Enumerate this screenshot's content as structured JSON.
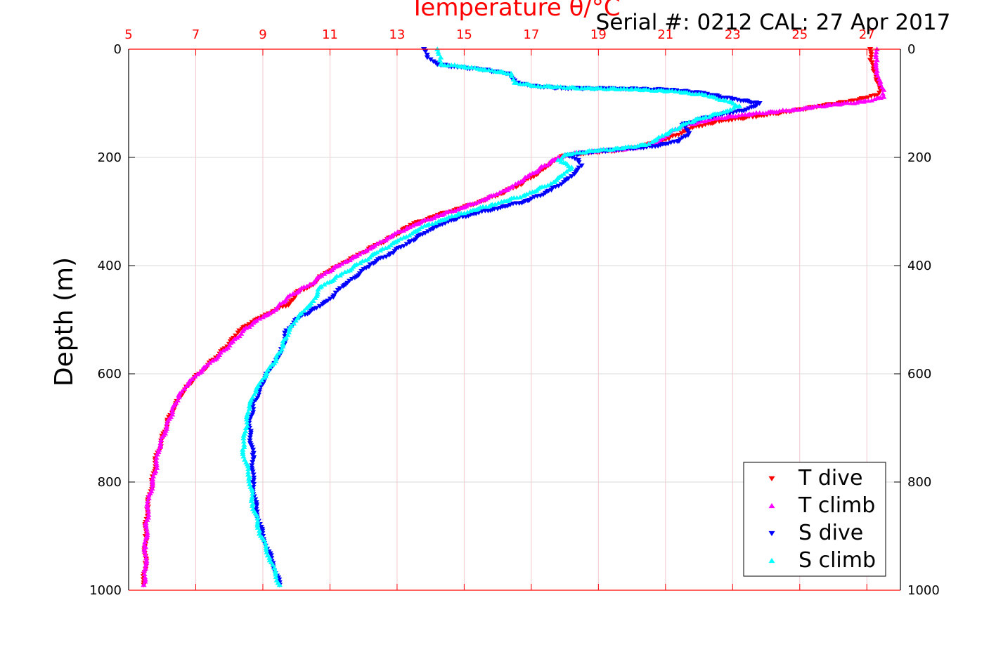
{
  "chart_data": {
    "type": "scatter",
    "title": "Temperature θ/°C",
    "subtitle": "Serial #: 0212  CAL: 27 Apr 2017",
    "xlabel": "Temperature θ/°C",
    "ylabel": "Depth (m)",
    "xlim": [
      5,
      28
    ],
    "ylim": [
      1000,
      0
    ],
    "x_ticks": [
      "5",
      "7",
      "9",
      "11",
      "13",
      "15",
      "17",
      "19",
      "21",
      "23",
      "25",
      "27"
    ],
    "y_ticks": [
      "0",
      "200",
      "400",
      "600",
      "800",
      "1000"
    ],
    "y_ticks_right": [
      "0",
      "200",
      "400",
      "600",
      "800",
      "1000"
    ],
    "grid": true,
    "legend_position": "bottom-right",
    "series": [
      {
        "name": "T dive",
        "color": "#ff0000",
        "marker": "triangle-down",
        "points": [
          [
            27.1,
            0
          ],
          [
            27.1,
            20
          ],
          [
            27.2,
            40
          ],
          [
            27.3,
            60
          ],
          [
            27.4,
            75
          ],
          [
            27.3,
            85
          ],
          [
            26.6,
            95
          ],
          [
            25.6,
            105
          ],
          [
            24.7,
            115
          ],
          [
            23.6,
            125
          ],
          [
            22.6,
            133
          ],
          [
            21.8,
            145
          ],
          [
            21.1,
            165
          ],
          [
            20.4,
            178
          ],
          [
            19.6,
            187
          ],
          [
            18.6,
            192
          ],
          [
            17.9,
            198
          ],
          [
            17.6,
            210
          ],
          [
            17.2,
            230
          ],
          [
            16.6,
            252
          ],
          [
            16.0,
            270
          ],
          [
            15.2,
            288
          ],
          [
            14.3,
            305
          ],
          [
            13.4,
            325
          ],
          [
            12.9,
            345
          ],
          [
            12.3,
            365
          ],
          [
            11.7,
            385
          ],
          [
            11.1,
            405
          ],
          [
            10.7,
            420
          ],
          [
            10.5,
            435
          ],
          [
            10.0,
            450
          ],
          [
            9.8,
            470
          ],
          [
            9.3,
            485
          ],
          [
            8.8,
            500
          ],
          [
            8.3,
            520
          ],
          [
            8.0,
            545
          ],
          [
            7.6,
            570
          ],
          [
            7.1,
            600
          ],
          [
            6.8,
            620
          ],
          [
            6.5,
            645
          ],
          [
            6.2,
            680
          ],
          [
            6.0,
            720
          ],
          [
            5.8,
            760
          ],
          [
            5.7,
            800
          ],
          [
            5.55,
            850
          ],
          [
            5.5,
            900
          ],
          [
            5.5,
            950
          ],
          [
            5.45,
            990
          ]
        ]
      },
      {
        "name": "T climb",
        "color": "#ff00ff",
        "marker": "triangle-up",
        "points": [
          [
            27.3,
            0
          ],
          [
            27.3,
            20
          ],
          [
            27.3,
            40
          ],
          [
            27.4,
            60
          ],
          [
            27.5,
            75
          ],
          [
            27.5,
            88
          ],
          [
            26.9,
            97
          ],
          [
            25.9,
            103
          ],
          [
            24.8,
            112
          ],
          [
            23.5,
            120
          ],
          [
            22.5,
            128
          ],
          [
            21.6,
            140
          ],
          [
            21.1,
            155
          ],
          [
            20.8,
            172
          ],
          [
            20.1,
            183
          ],
          [
            19.2,
            187
          ],
          [
            18.3,
            192
          ],
          [
            17.8,
            200
          ],
          [
            17.4,
            215
          ],
          [
            16.9,
            235
          ],
          [
            16.4,
            255
          ],
          [
            15.7,
            275
          ],
          [
            15.0,
            292
          ],
          [
            14.2,
            308
          ],
          [
            13.3,
            330
          ],
          [
            12.7,
            350
          ],
          [
            12.1,
            372
          ],
          [
            11.5,
            392
          ],
          [
            10.9,
            412
          ],
          [
            10.4,
            435
          ],
          [
            9.9,
            452
          ],
          [
            9.6,
            468
          ],
          [
            9.3,
            485
          ],
          [
            8.9,
            498
          ],
          [
            8.5,
            515
          ],
          [
            8.1,
            540
          ],
          [
            7.7,
            565
          ],
          [
            7.2,
            592
          ],
          [
            6.8,
            615
          ],
          [
            6.5,
            640
          ],
          [
            6.3,
            670
          ],
          [
            6.1,
            705
          ],
          [
            5.9,
            740
          ],
          [
            5.8,
            780
          ],
          [
            5.6,
            830
          ],
          [
            5.55,
            870
          ],
          [
            5.5,
            920
          ],
          [
            5.5,
            960
          ],
          [
            5.45,
            990
          ]
        ]
      },
      {
        "name": "S dive",
        "color": "#0000ff",
        "marker": "triangle-down",
        "points": [
          [
            13.8,
            0
          ],
          [
            13.9,
            15
          ],
          [
            14.2,
            28
          ],
          [
            14.8,
            33
          ],
          [
            15.6,
            38
          ],
          [
            16.3,
            45
          ],
          [
            16.6,
            62
          ],
          [
            17.0,
            68
          ],
          [
            17.9,
            72
          ],
          [
            19.7,
            73
          ],
          [
            21.0,
            75
          ],
          [
            22.0,
            80
          ],
          [
            23.0,
            92
          ],
          [
            23.8,
            100
          ],
          [
            23.4,
            112
          ],
          [
            22.7,
            120
          ],
          [
            22.0,
            130
          ],
          [
            21.5,
            140
          ],
          [
            21.7,
            155
          ],
          [
            21.4,
            170
          ],
          [
            20.6,
            180
          ],
          [
            19.7,
            185
          ],
          [
            18.8,
            190
          ],
          [
            18.1,
            196
          ],
          [
            18.4,
            205
          ],
          [
            18.5,
            215
          ],
          [
            18.2,
            235
          ],
          [
            17.6,
            260
          ],
          [
            16.9,
            280
          ],
          [
            15.9,
            295
          ],
          [
            14.8,
            312
          ],
          [
            14.1,
            330
          ],
          [
            13.4,
            355
          ],
          [
            12.8,
            378
          ],
          [
            12.2,
            398
          ],
          [
            11.8,
            420
          ],
          [
            11.3,
            442
          ],
          [
            11.1,
            458
          ],
          [
            10.7,
            475
          ],
          [
            10.1,
            495
          ],
          [
            9.7,
            520
          ],
          [
            9.6,
            550
          ],
          [
            9.4,
            575
          ],
          [
            9.1,
            600
          ],
          [
            8.9,
            630
          ],
          [
            8.7,
            660
          ],
          [
            8.6,
            700
          ],
          [
            8.7,
            750
          ],
          [
            8.7,
            800
          ],
          [
            8.8,
            850
          ],
          [
            9.0,
            900
          ],
          [
            9.3,
            950
          ],
          [
            9.5,
            990
          ]
        ]
      },
      {
        "name": "S climb",
        "color": "#00ffff",
        "marker": "triangle-up",
        "points": [
          [
            14.2,
            0
          ],
          [
            14.3,
            15
          ],
          [
            14.3,
            28
          ],
          [
            15.0,
            32
          ],
          [
            15.6,
            38
          ],
          [
            16.4,
            45
          ],
          [
            16.5,
            62
          ],
          [
            17.2,
            68
          ],
          [
            18.5,
            72
          ],
          [
            20.0,
            74
          ],
          [
            21.3,
            78
          ],
          [
            22.2,
            85
          ],
          [
            22.8,
            95
          ],
          [
            23.2,
            105
          ],
          [
            22.8,
            115
          ],
          [
            22.2,
            125
          ],
          [
            21.7,
            135
          ],
          [
            21.3,
            148
          ],
          [
            20.9,
            160
          ],
          [
            20.5,
            175
          ],
          [
            19.7,
            183
          ],
          [
            18.8,
            188
          ],
          [
            18.0,
            195
          ],
          [
            17.8,
            205
          ],
          [
            18.2,
            218
          ],
          [
            17.7,
            245
          ],
          [
            16.8,
            270
          ],
          [
            15.8,
            288
          ],
          [
            14.8,
            306
          ],
          [
            13.9,
            325
          ],
          [
            13.2,
            348
          ],
          [
            12.5,
            372
          ],
          [
            11.9,
            395
          ],
          [
            11.3,
            418
          ],
          [
            10.7,
            440
          ],
          [
            10.5,
            465
          ],
          [
            10.1,
            490
          ],
          [
            9.8,
            515
          ],
          [
            9.6,
            545
          ],
          [
            9.4,
            572
          ],
          [
            9.1,
            600
          ],
          [
            8.8,
            630
          ],
          [
            8.6,
            660
          ],
          [
            8.5,
            700
          ],
          [
            8.4,
            740
          ],
          [
            8.6,
            790
          ],
          [
            8.7,
            840
          ],
          [
            8.9,
            890
          ],
          [
            9.2,
            940
          ],
          [
            9.5,
            990
          ]
        ]
      }
    ]
  }
}
